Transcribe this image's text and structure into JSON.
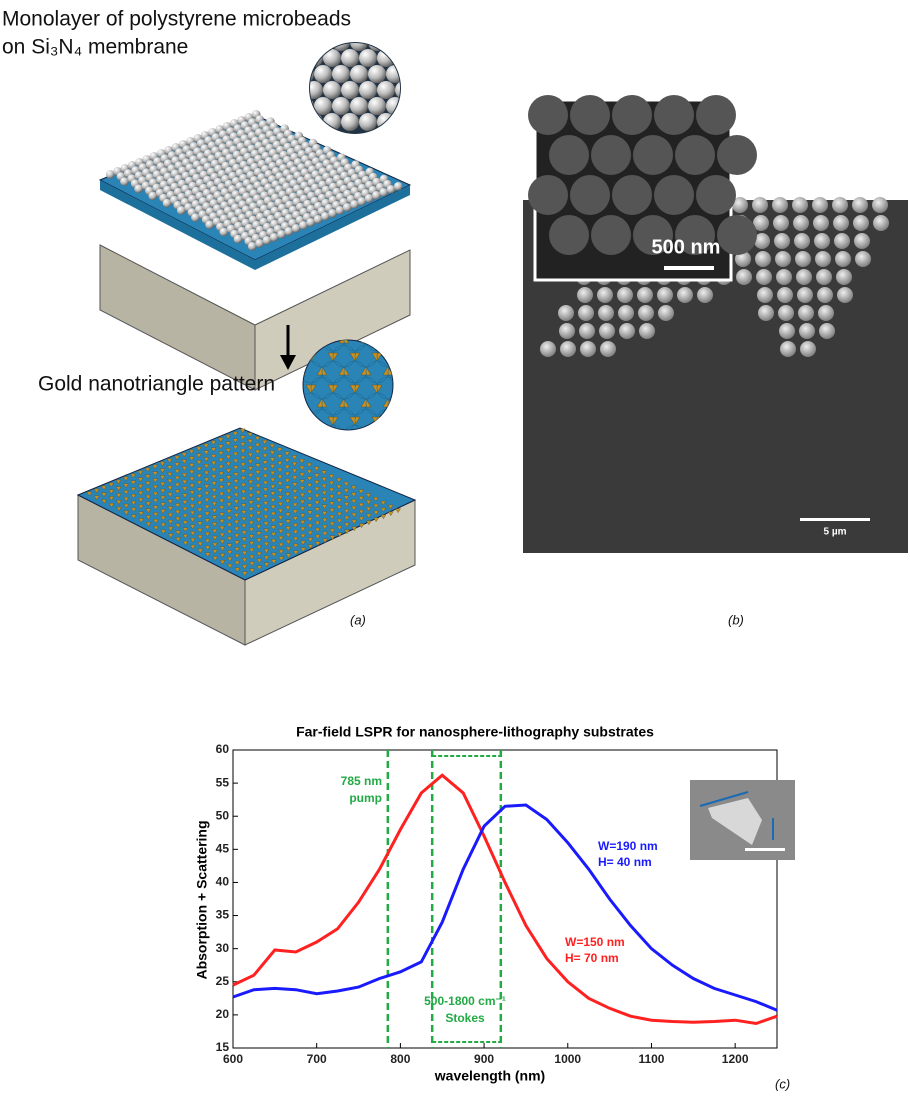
{
  "panel_a": {
    "caption_top_1": "Monolayer of polystyrene microbeads",
    "caption_top_2": "on Si₃N₄ membrane",
    "caption_bottom": "Gold nanotriangle pattern",
    "label": "(a)"
  },
  "panel_b": {
    "inset_scale": "500 nm",
    "scale": "5 µm",
    "label": "(b)"
  },
  "chart_data": {
    "type": "line",
    "title": "Far-field LSPR for nanosphere-lithography substrates",
    "x_label": "wavelength (nm)",
    "y_label": "Absorption + Scattering",
    "label": "(c)",
    "x": [
      600,
      625,
      650,
      675,
      700,
      725,
      750,
      775,
      800,
      825,
      850,
      875,
      900,
      925,
      950,
      975,
      1000,
      1025,
      1050,
      1075,
      1100,
      1125,
      1150,
      1175,
      1200,
      1225,
      1250
    ],
    "series": [
      {
        "name": "W=150 nm H= 70 nm",
        "color": "#ff2020",
        "values": [
          24.5,
          26,
          29.8,
          29.5,
          31,
          33,
          37,
          42,
          48,
          53.5,
          56.2,
          53.5,
          47,
          40,
          33.5,
          28.5,
          25,
          22.5,
          21,
          19.8,
          19.2,
          19,
          18.9,
          19,
          19.2,
          18.7,
          19.8
        ]
      },
      {
        "name": "W=190 nm H= 40 nm",
        "color": "#1a1aff",
        "values": [
          22.7,
          23.8,
          24,
          23.8,
          23.2,
          23.6,
          24.2,
          25.5,
          26.5,
          28,
          34,
          42,
          48.5,
          51.5,
          51.7,
          49.5,
          46,
          42,
          37.5,
          33.5,
          30,
          27.5,
          25.5,
          24,
          23,
          22,
          20.7
        ]
      }
    ],
    "annotations": {
      "pump": [
        "785 nm",
        "pump"
      ],
      "stokes": [
        "500-1800 cm⁻¹",
        "Stokes"
      ]
    },
    "reference_lines": {
      "x": [
        785,
        838,
        920
      ],
      "color": "#22aa44"
    },
    "xlim": [
      600,
      1250
    ],
    "ylim": [
      15,
      60
    ],
    "xticks": [
      600,
      700,
      800,
      900,
      1000,
      1100,
      1200
    ],
    "yticks": [
      15,
      20,
      25,
      30,
      35,
      40,
      45,
      50,
      55,
      60
    ]
  }
}
